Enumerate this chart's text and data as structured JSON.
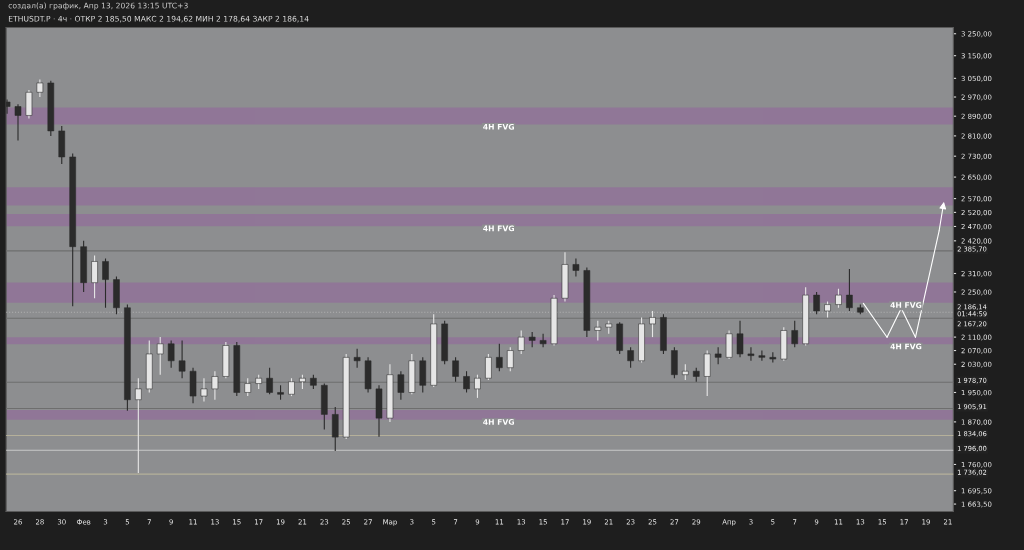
{
  "chart_data": {
    "type": "candlestick",
    "title": "ETHUSDT.P · 4ч · ОТКР 2 185,50 МАКС 2 194,62 МИН 2 178,64 ЗАКР 2 186,14",
    "annotations": [
      "создал(а) график, Апр 13, 2026 13:15 UTC+3"
    ],
    "x": [
      "2026-01-25",
      "2026-01-26",
      "2026-01-27",
      "2026-01-28",
      "2026-01-29",
      "2026-01-30",
      "2026-01-31",
      "2026-02-01",
      "2026-02-02",
      "2026-02-03",
      "2026-02-04",
      "2026-02-05",
      "2026-02-06",
      "2026-02-07",
      "2026-02-08",
      "2026-02-09",
      "2026-02-10",
      "2026-02-11",
      "2026-02-12",
      "2026-02-13",
      "2026-02-14",
      "2026-02-15",
      "2026-02-16",
      "2026-02-17",
      "2026-02-18",
      "2026-02-19",
      "2026-02-20",
      "2026-02-21",
      "2026-02-22",
      "2026-02-23",
      "2026-02-24",
      "2026-02-25",
      "2026-02-26",
      "2026-02-27",
      "2026-02-28",
      "2026-03-01",
      "2026-03-02",
      "2026-03-03",
      "2026-03-04",
      "2026-03-05",
      "2026-03-06",
      "2026-03-07",
      "2026-03-08",
      "2026-03-09",
      "2026-03-10",
      "2026-03-11",
      "2026-03-12",
      "2026-03-13",
      "2026-03-14",
      "2026-03-15",
      "2026-03-16",
      "2026-03-17",
      "2026-03-18",
      "2026-03-19",
      "2026-03-20",
      "2026-03-21",
      "2026-03-22",
      "2026-03-23",
      "2026-03-24",
      "2026-03-25",
      "2026-03-26",
      "2026-03-27",
      "2026-03-28",
      "2026-03-29",
      "2026-03-30",
      "2026-03-31",
      "2026-04-01",
      "2026-04-02",
      "2026-04-03",
      "2026-04-04",
      "2026-04-05",
      "2026-04-06",
      "2026-04-07",
      "2026-04-08",
      "2026-04-09",
      "2026-04-10",
      "2026-04-11",
      "2026-04-12",
      "2026-04-13"
    ],
    "ohlc": [
      [
        2949,
        2960,
        2900,
        2930
      ],
      [
        2930,
        2940,
        2792,
        2893
      ],
      [
        2893,
        3000,
        2880,
        2990
      ],
      [
        2990,
        3045,
        2970,
        3030
      ],
      [
        3030,
        3040,
        2810,
        2830
      ],
      [
        2830,
        2850,
        2700,
        2727
      ],
      [
        2727,
        2740,
        2205,
        2400
      ],
      [
        2400,
        2420,
        2250,
        2280
      ],
      [
        2280,
        2370,
        2230,
        2350
      ],
      [
        2350,
        2360,
        2200,
        2290
      ],
      [
        2290,
        2300,
        2180,
        2200
      ],
      [
        2200,
        2210,
        1900,
        1930
      ],
      [
        1930,
        1990,
        1739,
        1960
      ],
      [
        1960,
        2100,
        1950,
        2060
      ],
      [
        2060,
        2110,
        2000,
        2090
      ],
      [
        2090,
        2100,
        2020,
        2040
      ],
      [
        2040,
        2100,
        1990,
        2010
      ],
      [
        2010,
        2020,
        1920,
        1940
      ],
      [
        1940,
        1990,
        1925,
        1960
      ],
      [
        1960,
        2010,
        1930,
        1995
      ],
      [
        1995,
        2095,
        1990,
        2085
      ],
      [
        2085,
        2095,
        1940,
        1950
      ],
      [
        1950,
        1990,
        1940,
        1975
      ],
      [
        1975,
        2000,
        1960,
        1990
      ],
      [
        1990,
        2020,
        1945,
        1950
      ],
      [
        1950,
        1970,
        1930,
        1945
      ],
      [
        1945,
        1990,
        1940,
        1980
      ],
      [
        1980,
        2000,
        1960,
        1990
      ],
      [
        1990,
        2000,
        1960,
        1970
      ],
      [
        1970,
        1975,
        1850,
        1890
      ],
      [
        1890,
        1910,
        1794,
        1830
      ],
      [
        1830,
        2060,
        1825,
        2050
      ],
      [
        2050,
        2075,
        2020,
        2040
      ],
      [
        2040,
        2050,
        1950,
        1960
      ],
      [
        1960,
        1970,
        1831,
        1880
      ],
      [
        1880,
        2030,
        1870,
        2000
      ],
      [
        2000,
        2010,
        1930,
        1950
      ],
      [
        1950,
        2060,
        1945,
        2040
      ],
      [
        2040,
        2050,
        1950,
        1970
      ],
      [
        1970,
        2180,
        1965,
        2150
      ],
      [
        2150,
        2160,
        2030,
        2040
      ],
      [
        2040,
        2050,
        1980,
        1995
      ],
      [
        1995,
        2010,
        1950,
        1960
      ],
      [
        1960,
        2000,
        1935,
        1990
      ],
      [
        1990,
        2060,
        1985,
        2050
      ],
      [
        2050,
        2090,
        2010,
        2020
      ],
      [
        2020,
        2080,
        2010,
        2070
      ],
      [
        2070,
        2130,
        2060,
        2110
      ],
      [
        2110,
        2125,
        2080,
        2100
      ],
      [
        2100,
        2120,
        2080,
        2090
      ],
      [
        2090,
        2240,
        2085,
        2230
      ],
      [
        2230,
        2381,
        2220,
        2340
      ],
      [
        2340,
        2360,
        2300,
        2320
      ],
      [
        2320,
        2330,
        2110,
        2130
      ],
      [
        2130,
        2160,
        2100,
        2140
      ],
      [
        2140,
        2160,
        2120,
        2150
      ],
      [
        2150,
        2155,
        2060,
        2070
      ],
      [
        2070,
        2080,
        2020,
        2040
      ],
      [
        2040,
        2170,
        2035,
        2150
      ],
      [
        2150,
        2190,
        2110,
        2170
      ],
      [
        2170,
        2180,
        2060,
        2070
      ],
      [
        2070,
        2080,
        1990,
        2000
      ],
      [
        2000,
        2030,
        1985,
        2010
      ],
      [
        2010,
        2020,
        1980,
        1995
      ],
      [
        1995,
        2070,
        1940,
        2060
      ],
      [
        2060,
        2080,
        2030,
        2050
      ],
      [
        2050,
        2130,
        2045,
        2120
      ],
      [
        2120,
        2160,
        2050,
        2060
      ],
      [
        2060,
        2080,
        2040,
        2055
      ],
      [
        2055,
        2070,
        2040,
        2050
      ],
      [
        2050,
        2065,
        2035,
        2045
      ],
      [
        2045,
        2140,
        2040,
        2130
      ],
      [
        2130,
        2160,
        2080,
        2090
      ],
      [
        2090,
        2265,
        2085,
        2240
      ],
      [
        2240,
        2250,
        2180,
        2190
      ],
      [
        2190,
        2220,
        2170,
        2210
      ],
      [
        2210,
        2260,
        2200,
        2240
      ],
      [
        2240,
        2325,
        2190,
        2200
      ],
      [
        2200,
        2210,
        2180,
        2186
      ]
    ],
    "log": true,
    "xlim": [
      "2026-01-24T22:00",
      "2026-04-21T12:00"
    ],
    "xticks": [
      {
        "value": "2026-01-26",
        "label": "26"
      },
      {
        "value": "2026-01-28",
        "label": "28"
      },
      {
        "value": "2026-01-30",
        "label": "30"
      },
      {
        "value": "2026-02-01",
        "label": "Фев"
      },
      {
        "value": "2026-02-03",
        "label": "3"
      },
      {
        "value": "2026-02-05",
        "label": "5"
      },
      {
        "value": "2026-02-07",
        "label": "7"
      },
      {
        "value": "2026-02-09",
        "label": "9"
      },
      {
        "value": "2026-02-11",
        "label": "11"
      },
      {
        "value": "2026-02-13",
        "label": "13"
      },
      {
        "value": "2026-02-15",
        "label": "15"
      },
      {
        "value": "2026-02-17",
        "label": "17"
      },
      {
        "value": "2026-02-19",
        "label": "19"
      },
      {
        "value": "2026-02-21",
        "label": "21"
      },
      {
        "value": "2026-02-23",
        "label": "23"
      },
      {
        "value": "2026-02-25",
        "label": "25"
      },
      {
        "value": "2026-02-27",
        "label": "27"
      },
      {
        "value": "2026-03-01",
        "label": "Мар"
      },
      {
        "value": "2026-03-03",
        "label": "3"
      },
      {
        "value": "2026-03-05",
        "label": "5"
      },
      {
        "value": "2026-03-07",
        "label": "7"
      },
      {
        "value": "2026-03-09",
        "label": "9"
      },
      {
        "value": "2026-03-11",
        "label": "11"
      },
      {
        "value": "2026-03-13",
        "label": "13"
      },
      {
        "value": "2026-03-15",
        "label": "15"
      },
      {
        "value": "2026-03-17",
        "label": "17"
      },
      {
        "value": "2026-03-19",
        "label": "19"
      },
      {
        "value": "2026-03-21",
        "label": "21"
      },
      {
        "value": "2026-03-23",
        "label": "23"
      },
      {
        "value": "2026-03-25",
        "label": "25"
      },
      {
        "value": "2026-03-27",
        "label": "27"
      },
      {
        "value": "2026-03-29",
        "label": "29"
      },
      {
        "value": "2026-04-01",
        "label": "Апр"
      },
      {
        "value": "2026-04-03",
        "label": "3"
      },
      {
        "value": "2026-04-05",
        "label": "5"
      },
      {
        "value": "2026-04-07",
        "label": "7"
      },
      {
        "value": "2026-04-09",
        "label": "9"
      },
      {
        "value": "2026-04-11",
        "label": "11"
      },
      {
        "value": "2026-04-13",
        "label": "13"
      },
      {
        "value": "2026-04-15",
        "label": "15"
      },
      {
        "value": "2026-04-17",
        "label": "17"
      },
      {
        "value": "2026-04-19",
        "label": "19"
      },
      {
        "value": "2026-04-21",
        "label": "21"
      }
    ],
    "ylim": [
      1646,
      3279
    ],
    "yticks": [
      {
        "value": 3250,
        "label": "3 250,00"
      },
      {
        "value": 3150,
        "label": "3 150,00"
      },
      {
        "value": 3050,
        "label": "3 050,00"
      },
      {
        "value": 2970,
        "label": "2 970,00"
      },
      {
        "value": 2890,
        "label": "2 890,00"
      },
      {
        "value": 2810,
        "label": "2 810,00"
      },
      {
        "value": 2730,
        "label": "2 730,00"
      },
      {
        "value": 2650,
        "label": "2 650,00"
      },
      {
        "value": 2570,
        "label": "2 570,00"
      },
      {
        "value": 2520,
        "label": "2 520,00"
      },
      {
        "value": 2470,
        "label": "2 470,00"
      },
      {
        "value": 2420,
        "label": "2 420,00"
      },
      {
        "value": 2310,
        "label": "2 310,00"
      },
      {
        "value": 2250,
        "label": "2 250,00"
      },
      {
        "value": 2110,
        "label": "2 110,00"
      },
      {
        "value": 2070,
        "label": "2 070,00"
      },
      {
        "value": 2030,
        "label": "2 030,00"
      },
      {
        "value": 1950,
        "label": "1 950,00"
      },
      {
        "value": 1870,
        "label": "1 870,00"
      },
      {
        "value": 1760,
        "label": "1 760,00"
      },
      {
        "value": 1695.5,
        "label": "1 695,50"
      },
      {
        "value": 1663.5,
        "label": "1 663,50"
      }
    ],
    "bands": [
      {
        "axis": "y",
        "from": 2859,
        "to": 2922,
        "label": "4H FVG",
        "color": "#9c27b0"
      },
      {
        "axis": "y",
        "from": 2548,
        "to": 2609,
        "label": null,
        "color": "#9c27b0"
      },
      {
        "axis": "y",
        "from": 2474,
        "to": 2511,
        "label": "4H FVG",
        "color": "#9c27b0"
      },
      {
        "axis": "y",
        "from": 2218,
        "to": 2278,
        "label": "4H FVG",
        "color": "#9c27b0"
      },
      {
        "axis": "y",
        "from": 2091,
        "to": 2107,
        "label": "4H FVG",
        "color": "#9c27b0"
      },
      {
        "axis": "y",
        "from": 1878,
        "to": 1900,
        "label": "4H FVG",
        "color": "#9c27b0"
      }
    ],
    "ref_lines": [
      {
        "axis": "y",
        "value": 2385.7,
        "label": "2 385,70",
        "color": "#6e6e6e",
        "line_style": "solid"
      },
      {
        "axis": "y",
        "value": 2186.14,
        "label": "2 186,14\n01:44:59",
        "color": "#b0b0b0",
        "line_style": "dotted"
      },
      {
        "axis": "y",
        "value": 2167.2,
        "label": "2 167,20",
        "color": "#6e6e6e",
        "line_style": "solid"
      },
      {
        "axis": "y",
        "value": 1978.7,
        "label": "1 978,70",
        "color": "#6e6e6e",
        "line_style": "solid"
      },
      {
        "axis": "y",
        "value": 1905.91,
        "label": "1 905,91",
        "color": "#6e6e6e",
        "line_style": "solid"
      },
      {
        "axis": "y",
        "value": 1834.06,
        "label": "1 834,06",
        "color": "#b5b09a",
        "line_style": "solid"
      },
      {
        "axis": "y",
        "value": 1796.0,
        "label": "1 796,00",
        "color": "#c8c8c8",
        "line_style": "solid"
      },
      {
        "axis": "y",
        "value": 1736.02,
        "label": "1 736,02",
        "color": "#b5b09a",
        "line_style": "solid"
      }
    ],
    "grid": false
  }
}
